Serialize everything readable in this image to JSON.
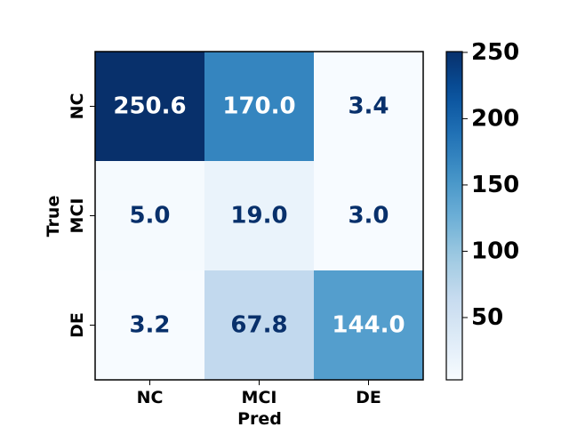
{
  "chart_data": {
    "type": "heatmap",
    "title": "",
    "xlabel": "Pred",
    "ylabel": "True",
    "x_categories": [
      "NC",
      "MCI",
      "DE"
    ],
    "y_categories": [
      "NC",
      "MCI",
      "DE"
    ],
    "values": [
      [
        250.6,
        170.0,
        3.4
      ],
      [
        5.0,
        19.0,
        3.0
      ],
      [
        3.2,
        67.8,
        144.0
      ]
    ],
    "value_labels": [
      [
        "250.6",
        "170.0",
        "3.4"
      ],
      [
        "5.0",
        "19.0",
        "3.0"
      ],
      [
        "3.2",
        "67.8",
        "144.0"
      ]
    ],
    "colormap": "Blues",
    "vmin": 3.0,
    "vmax": 250.6,
    "colorbar_ticks": [
      50,
      100,
      150,
      200,
      250
    ],
    "colorbar_tick_labels": [
      "50",
      "100",
      "150",
      "200",
      "250"
    ],
    "text_colors": {
      "light": "#ffffff",
      "dark": "#08306b"
    }
  }
}
